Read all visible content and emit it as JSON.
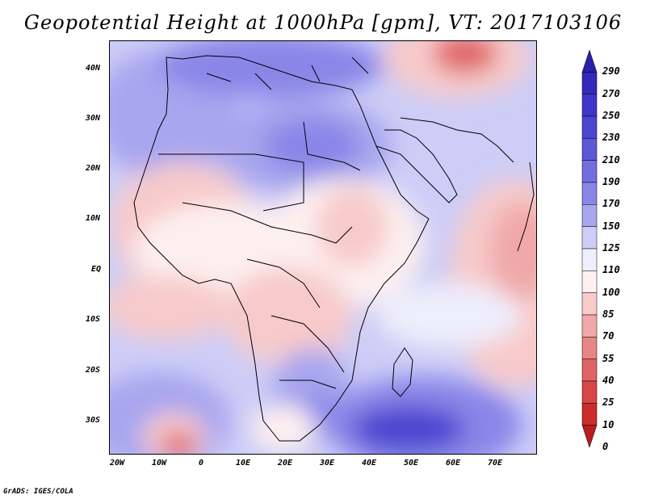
{
  "title": "Geopotential Height at 1000hPa [gpm], VT: 2017103106",
  "map": {
    "lat_labels": [
      "40N",
      "30N",
      "20N",
      "10N",
      "EQ",
      "10S",
      "20S",
      "30S"
    ],
    "lon_labels": [
      "20W",
      "10W",
      "0",
      "10E",
      "20E",
      "30E",
      "40E",
      "50E",
      "60E",
      "70E"
    ],
    "lat_range": [
      -37,
      45
    ],
    "lon_range": [
      -22,
      80
    ]
  },
  "colorbar": {
    "labels": [
      "290",
      "270",
      "250",
      "230",
      "210",
      "190",
      "170",
      "150",
      "125",
      "110",
      "100",
      "85",
      "70",
      "55",
      "40",
      "25",
      "10",
      "0"
    ],
    "colors": [
      "#2a1fa8",
      "#3429b8",
      "#4035c8",
      "#4c45d0",
      "#5e58d8",
      "#726ee0",
      "#8a86e8",
      "#a8a6ef",
      "#cdcdf7",
      "#eeeefc",
      "#fdf0f0",
      "#f8caca",
      "#f0a8a8",
      "#e88686",
      "#e06464",
      "#d84646",
      "#cc2c2c",
      "#b81c1c"
    ]
  },
  "credit": "GrADS: IGES/COLA"
}
